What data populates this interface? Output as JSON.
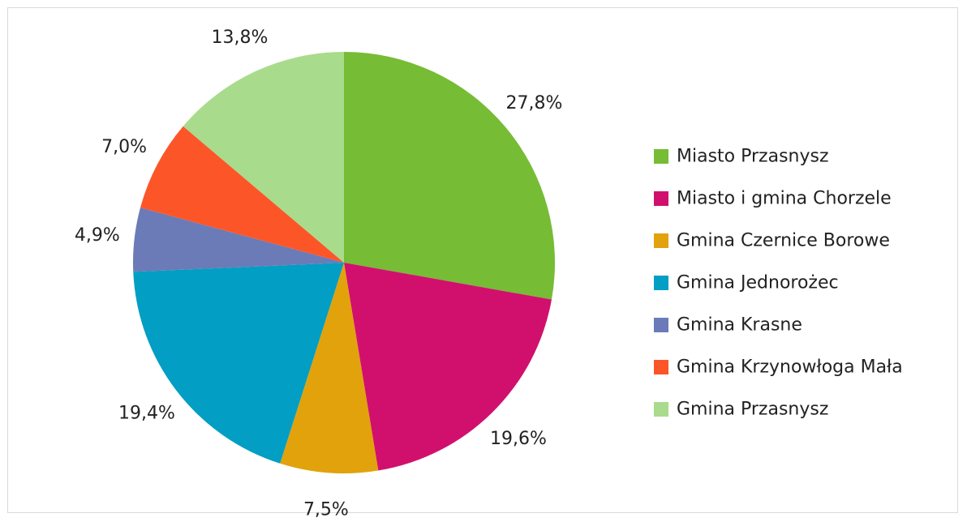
{
  "chart_data": {
    "type": "pie",
    "title": "",
    "categories": [
      "Miasto Przasnysz",
      "Miasto i gmina Chorzele",
      "Gmina Czernice Borowe",
      "Gmina Jednorożec",
      "Gmina Krasne",
      "Gmina Krzynowłoga Mała",
      "Gmina Przasnysz"
    ],
    "values": [
      27.8,
      19.6,
      7.5,
      19.4,
      4.9,
      7.0,
      13.8
    ],
    "value_labels": [
      "27,8%",
      "19,6%",
      "7,5%",
      "19,4%",
      "4,9%",
      "7,0%",
      "13,8%"
    ],
    "colors": [
      "#76bc35",
      "#d1106d",
      "#e1a20c",
      "#029ec4",
      "#6a7bb7",
      "#fc5628",
      "#a9db8c"
    ],
    "start": "12 o'clock",
    "direction": "clockwise",
    "legend_position": "right"
  }
}
